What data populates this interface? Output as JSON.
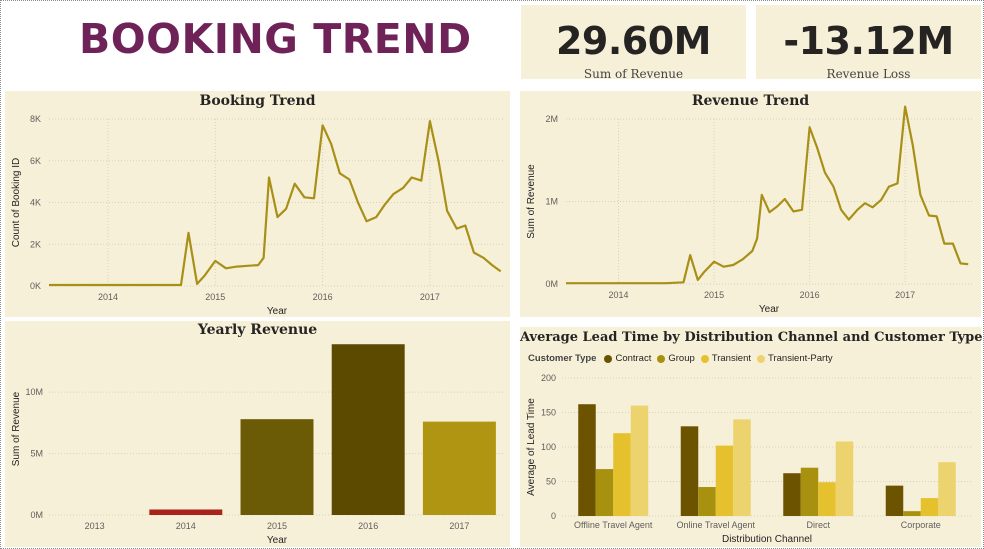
{
  "header": {
    "title": "BOOKING TREND"
  },
  "kpis": {
    "revenue": {
      "value": "29.60M",
      "label": "Sum of Revenue"
    },
    "loss": {
      "value": "-13.12M",
      "label": "Revenue Loss"
    }
  },
  "colors": {
    "accent_title": "#6e2257",
    "line": "#a89018",
    "panel_bg": "#f7f0d9",
    "bar_dark": "#5b4a00",
    "bar_mid": "#6b5a06",
    "bar_light": "#b09512",
    "bar_red": "#a8241a",
    "contract": "#6b5300",
    "group": "#a8910e",
    "transient": "#e6c12e",
    "transient_party": "#ecd36e"
  },
  "chart_data": [
    {
      "type": "line",
      "title": "Booking Trend",
      "xlabel": "Year",
      "ylabel": "Count of Booking ID",
      "x_ticks": [
        "2014",
        "2015",
        "2016",
        "2017"
      ],
      "y_ticks": [
        "0K",
        "2K",
        "4K",
        "6K",
        "8K"
      ],
      "ylim": [
        0,
        8000
      ],
      "xlim": [
        2013.45,
        2017.7
      ],
      "grid": true,
      "series": [
        {
          "x": [
            2013.45,
            2014.0,
            2014.5,
            2014.68,
            2014.75,
            2014.83,
            2014.9,
            2015.0,
            2015.1,
            2015.2,
            2015.3,
            2015.4,
            2015.45,
            2015.5,
            2015.58,
            2015.66,
            2015.74,
            2015.83,
            2015.92,
            2016.0,
            2016.08,
            2016.16,
            2016.25,
            2016.33,
            2016.41,
            2016.5,
            2016.58,
            2016.66,
            2016.75,
            2016.83,
            2016.92,
            2017.0,
            2017.08,
            2017.16,
            2017.25,
            2017.33,
            2017.41,
            2017.5,
            2017.58,
            2017.66
          ],
          "y": [
            50,
            50,
            50,
            50,
            2550,
            100,
            500,
            1200,
            850,
            930,
            970,
            1000,
            1350,
            5200,
            3300,
            3700,
            4900,
            4250,
            4200,
            7700,
            6800,
            5400,
            5100,
            4000,
            3100,
            3300,
            3900,
            4400,
            4700,
            5200,
            5050,
            7900,
            6000,
            3600,
            2750,
            2900,
            1600,
            1350,
            1000,
            700
          ]
        }
      ]
    },
    {
      "type": "line",
      "title": "Revenue Trend",
      "xlabel": "Year",
      "ylabel": "Sum of Revenue",
      "x_ticks": [
        "2014",
        "2015",
        "2016",
        "2017"
      ],
      "y_ticks": [
        "0M",
        "1M",
        "2M"
      ],
      "ylim": [
        0,
        2000000
      ],
      "xlim": [
        2013.45,
        2017.7
      ],
      "grid": true,
      "series": [
        {
          "x": [
            2013.45,
            2014.0,
            2014.5,
            2014.68,
            2014.75,
            2014.83,
            2014.9,
            2015.0,
            2015.1,
            2015.2,
            2015.3,
            2015.4,
            2015.45,
            2015.5,
            2015.58,
            2015.66,
            2015.74,
            2015.83,
            2015.92,
            2016.0,
            2016.08,
            2016.16,
            2016.25,
            2016.33,
            2016.41,
            2016.5,
            2016.58,
            2016.66,
            2016.75,
            2016.83,
            2016.92,
            2017.0,
            2017.08,
            2017.16,
            2017.25,
            2017.33,
            2017.41,
            2017.5,
            2017.58,
            2017.66
          ],
          "y": [
            10000,
            10000,
            10000,
            20000,
            350000,
            50000,
            150000,
            270000,
            210000,
            230000,
            300000,
            400000,
            550000,
            1080000,
            870000,
            940000,
            1030000,
            880000,
            900000,
            1900000,
            1650000,
            1350000,
            1180000,
            900000,
            780000,
            900000,
            980000,
            930000,
            1020000,
            1180000,
            1220000,
            2150000,
            1680000,
            1080000,
            830000,
            820000,
            490000,
            490000,
            250000,
            240000
          ]
        }
      ]
    },
    {
      "type": "bar",
      "title": "Yearly Revenue",
      "xlabel": "Year",
      "ylabel": "Sum of Revenue",
      "categories": [
        "2013",
        "2014",
        "2015",
        "2016",
        "2017"
      ],
      "values": [
        0,
        450000,
        7800000,
        13900000,
        7600000
      ],
      "y_ticks": [
        "0M",
        "5M",
        "10M"
      ],
      "ylim": [
        0,
        14000000
      ],
      "grid": true
    },
    {
      "type": "bar",
      "title": "Average Lead Time by Distribution Channel and Customer Type",
      "xlabel": "Distribution Channel",
      "ylabel": "Average of Lead Time",
      "legend_title": "Customer Type",
      "legend_position": "top-left",
      "categories": [
        "Offline Travel Agent",
        "Online Travel Agent",
        "Direct",
        "Corporate"
      ],
      "y_ticks": [
        "0",
        "50",
        "100",
        "150",
        "200"
      ],
      "ylim": [
        0,
        200
      ],
      "grid": true,
      "series": [
        {
          "name": "Contract",
          "values": [
            162,
            130,
            62,
            44
          ]
        },
        {
          "name": "Group",
          "values": [
            68,
            42,
            70,
            7
          ]
        },
        {
          "name": "Transient",
          "values": [
            120,
            102,
            49,
            26
          ]
        },
        {
          "name": "Transient-Party",
          "values": [
            160,
            140,
            108,
            78
          ]
        }
      ]
    }
  ]
}
